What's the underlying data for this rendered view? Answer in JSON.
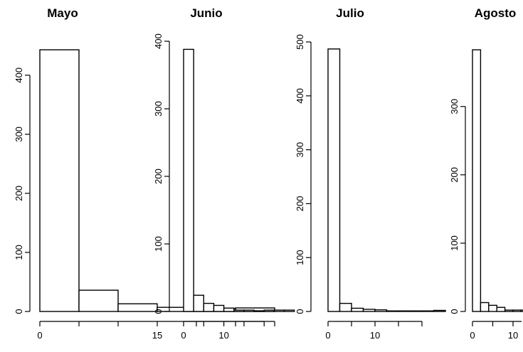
{
  "chart_data": [
    {
      "type": "bar",
      "title": "Mayo",
      "bin_width": 5,
      "x_start": 0,
      "values": [
        443,
        36,
        13,
        7,
        5,
        6
      ],
      "yticks": [
        0,
        100,
        200,
        300,
        400
      ],
      "ylim": [
        0,
        443
      ],
      "xticks": [
        0,
        15
      ],
      "xtick_marks": [
        0,
        5,
        10,
        15,
        20,
        25,
        30
      ]
    },
    {
      "type": "bar",
      "title": "Junio",
      "bin_width": 2.5,
      "x_start": 0,
      "values": [
        388,
        24,
        12,
        9,
        5,
        2,
        2,
        1,
        2,
        2,
        2
      ],
      "yticks": [
        0,
        100,
        200,
        300,
        400
      ],
      "ylim": [
        0,
        400
      ],
      "xticks": [
        0,
        10
      ],
      "xtick_marks": [
        0,
        5,
        10,
        15,
        20
      ]
    },
    {
      "type": "bar",
      "title": "Julio",
      "bin_width": 2.5,
      "x_start": 0,
      "values": [
        487,
        15,
        6,
        4,
        3,
        1,
        1,
        1,
        1,
        2
      ],
      "yticks": [
        0,
        100,
        200,
        300,
        400,
        500
      ],
      "ylim": [
        0,
        500
      ],
      "xticks": [
        0,
        10
      ],
      "xtick_marks": [
        0,
        5,
        10,
        15,
        20
      ]
    },
    {
      "type": "bar",
      "title": "Agosto",
      "bin_width": 2,
      "x_start": 0,
      "values": [
        383,
        13,
        9,
        6,
        2,
        2,
        2,
        1,
        1,
        1,
        1,
        2,
        2
      ],
      "yticks": [
        0,
        100,
        200,
        300
      ],
      "ylim": [
        0,
        383
      ],
      "xticks": [
        0,
        10
      ],
      "xtick_marks": [
        0,
        5,
        10,
        15,
        20
      ]
    }
  ]
}
